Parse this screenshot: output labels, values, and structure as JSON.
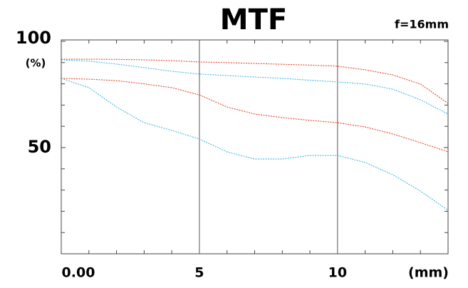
{
  "chart_data": {
    "type": "line",
    "title": "MTF",
    "annotation": "f=16mm",
    "xlabel": "(mm)",
    "ylabel": "(%)",
    "x": [
      0,
      1,
      2,
      3,
      4,
      5,
      6,
      7,
      8,
      9,
      10,
      11,
      12,
      13,
      14
    ],
    "series": [
      {
        "color": "#e8442a",
        "values": [
          91.6,
          91.6,
          91.5,
          91.3,
          90.9,
          90.3,
          90.0,
          89.6,
          89.2,
          88.8,
          88.3,
          86.6,
          84.2,
          79.9,
          70.8
        ]
      },
      {
        "color": "#3fb8e6",
        "values": [
          91.3,
          90.7,
          89.3,
          87.6,
          85.9,
          84.6,
          83.9,
          83.2,
          82.6,
          81.7,
          80.9,
          79.9,
          77.5,
          72.5,
          65.8
        ]
      },
      {
        "color": "#e8442a",
        "values": [
          82.6,
          82.2,
          81.5,
          80.0,
          78.2,
          74.8,
          69.1,
          65.8,
          64.1,
          62.8,
          61.7,
          59.7,
          56.4,
          52.3,
          48.0
        ]
      },
      {
        "color": "#3fb8e6",
        "values": [
          82.6,
          78.2,
          69.1,
          61.7,
          58.1,
          54.0,
          48.0,
          44.6,
          44.6,
          46.3,
          46.3,
          43.0,
          37.2,
          29.5,
          20.5
        ]
      }
    ],
    "xlim": [
      0,
      14
    ],
    "xticks": [
      {
        "value": 0,
        "label": "0.00"
      },
      5,
      10
    ],
    "xminorticks": [
      1,
      2,
      3,
      4,
      6,
      7,
      8,
      9,
      11,
      12,
      13
    ],
    "ylim": [
      0,
      100
    ],
    "yticks": [
      50,
      100
    ],
    "yminorticks": [
      10,
      20,
      30,
      40,
      60,
      70,
      80,
      90
    ],
    "grid": true
  }
}
